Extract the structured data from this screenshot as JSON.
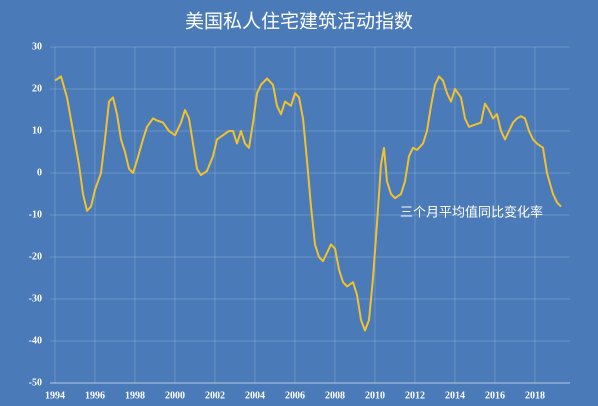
{
  "chart_data": {
    "type": "line",
    "title": "美国私人住宅建筑活动指数",
    "annotation": "三个月平均值同比变化率",
    "color": "#f2c12e",
    "grid": true,
    "xlim": [
      1993.75,
      2019.75
    ],
    "ylim": [
      -50,
      30
    ],
    "xticks": [
      1994,
      1996,
      1998,
      2000,
      2002,
      2004,
      2006,
      2008,
      2010,
      2012,
      2014,
      2016,
      2018
    ],
    "yticks": [
      30,
      20,
      10,
      0,
      -10,
      -20,
      -30,
      -40,
      -50
    ],
    "x": [
      1994.0,
      1994.3,
      1994.6,
      1994.9,
      1995.2,
      1995.4,
      1995.6,
      1995.8,
      1996.0,
      1996.3,
      1996.5,
      1996.7,
      1996.9,
      1997.1,
      1997.3,
      1997.5,
      1997.7,
      1997.9,
      1998.1,
      1998.4,
      1998.6,
      1998.9,
      1999.1,
      1999.4,
      1999.7,
      2000.0,
      2000.3,
      2000.5,
      2000.7,
      2000.9,
      2001.1,
      2001.3,
      2001.6,
      2001.9,
      2002.1,
      2002.4,
      2002.7,
      2002.9,
      2003.1,
      2003.3,
      2003.5,
      2003.7,
      2003.9,
      2004.1,
      2004.3,
      2004.6,
      2004.9,
      2005.1,
      2005.3,
      2005.5,
      2005.8,
      2006.0,
      2006.2,
      2006.4,
      2006.6,
      2006.8,
      2007.0,
      2007.2,
      2007.4,
      2007.6,
      2007.8,
      2008.0,
      2008.2,
      2008.4,
      2008.6,
      2008.9,
      2009.1,
      2009.3,
      2009.5,
      2009.7,
      2009.9,
      2010.1,
      2010.3,
      2010.45,
      2010.6,
      2010.8,
      2011.0,
      2011.3,
      2011.5,
      2011.7,
      2011.9,
      2012.1,
      2012.4,
      2012.6,
      2012.8,
      2013.0,
      2013.2,
      2013.4,
      2013.6,
      2013.8,
      2014.0,
      2014.3,
      2014.5,
      2014.7,
      2015.0,
      2015.3,
      2015.5,
      2015.7,
      2015.9,
      2016.1,
      2016.3,
      2016.5,
      2016.7,
      2016.9,
      2017.1,
      2017.3,
      2017.5,
      2017.7,
      2017.9,
      2018.1,
      2018.4,
      2018.6,
      2018.9,
      2019.1,
      2019.3
    ],
    "values": [
      22,
      23,
      18,
      10,
      2,
      -5,
      -9,
      -8,
      -4,
      0,
      8,
      17,
      18,
      14,
      8,
      5,
      1,
      0,
      3,
      8,
      11,
      13,
      12.5,
      12,
      10,
      9,
      12,
      15,
      13,
      7,
      1,
      -0.5,
      0.5,
      4,
      8,
      9,
      10,
      10,
      7,
      10,
      7,
      6,
      12,
      19,
      21,
      22.5,
      21,
      16,
      14,
      17,
      16,
      19,
      18,
      13,
      3,
      -8,
      -17,
      -20,
      -21,
      -19,
      -17,
      -18,
      -23,
      -26,
      -27,
      -26,
      -29,
      -35,
      -37.5,
      -35,
      -25,
      -12,
      2,
      6,
      -2,
      -5,
      -6,
      -5,
      -2,
      4,
      6,
      5.5,
      7,
      10,
      16,
      21,
      23,
      22,
      19,
      17,
      20,
      18,
      13,
      11,
      11.5,
      12,
      16.5,
      15,
      13,
      14,
      10,
      8,
      10,
      12,
      13,
      13.5,
      13,
      10,
      8,
      7,
      6,
      0,
      -5,
      -7,
      -8
    ]
  }
}
